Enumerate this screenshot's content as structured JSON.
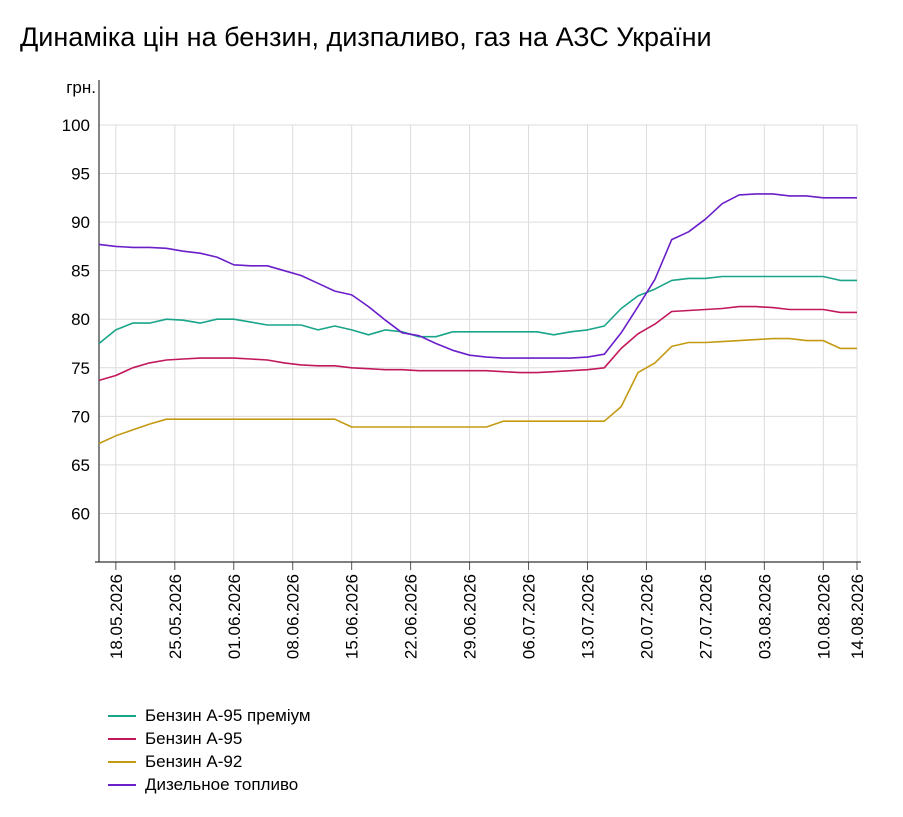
{
  "title": "Динаміка цін на бензин, дизпаливо, газ на АЗС України",
  "chart_data": {
    "type": "line",
    "title": "Динаміка цін на бензин, дизпаливо, газ на АЗС України",
    "ylabel": "грн.",
    "xlabel": "",
    "ylim": [
      55,
      100
    ],
    "yticks": [
      60,
      65,
      70,
      75,
      80,
      85,
      90,
      95,
      100
    ],
    "grid": true,
    "legend_position": "bottom-left",
    "x_range": [
      "2026-05-16",
      "2026-08-14"
    ],
    "x_tick_labels": [
      "18.05.2026",
      "25.05.2026",
      "01.06.2026",
      "08.06.2026",
      "15.06.2026",
      "22.06.2026",
      "29.06.2026",
      "06.07.2026",
      "13.07.2026",
      "20.07.2026",
      "27.07.2026",
      "03.08.2026",
      "10.08.2026",
      "14.08.2026"
    ],
    "x": [
      "2026-05-16",
      "2026-05-18",
      "2026-05-20",
      "2026-05-22",
      "2026-05-24",
      "2026-05-26",
      "2026-05-28",
      "2026-05-30",
      "2026-06-01",
      "2026-06-03",
      "2026-06-05",
      "2026-06-07",
      "2026-06-09",
      "2026-06-11",
      "2026-06-13",
      "2026-06-15",
      "2026-06-17",
      "2026-06-19",
      "2026-06-21",
      "2026-06-23",
      "2026-06-25",
      "2026-06-27",
      "2026-06-29",
      "2026-07-01",
      "2026-07-03",
      "2026-07-05",
      "2026-07-07",
      "2026-07-09",
      "2026-07-11",
      "2026-07-13",
      "2026-07-15",
      "2026-07-17",
      "2026-07-19",
      "2026-07-21",
      "2026-07-23",
      "2026-07-25",
      "2026-07-27",
      "2026-07-29",
      "2026-07-31",
      "2026-08-02",
      "2026-08-04",
      "2026-08-06",
      "2026-08-08",
      "2026-08-10",
      "2026-08-12",
      "2026-08-14"
    ],
    "series": [
      {
        "name": "Бензин А-95 преміум",
        "color": "#1aa58a",
        "values": [
          77.5,
          78.9,
          79.6,
          79.6,
          80.0,
          79.9,
          79.6,
          80.0,
          80.0,
          79.7,
          79.4,
          79.4,
          79.4,
          78.9,
          79.3,
          78.9,
          78.4,
          78.9,
          78.7,
          78.2,
          78.2,
          78.7,
          78.7,
          78.7,
          78.7,
          78.7,
          78.7,
          78.4,
          78.7,
          78.9,
          79.3,
          81.1,
          82.4,
          83.1,
          84.0,
          84.2,
          84.2,
          84.4,
          84.4,
          84.4,
          84.4,
          84.4,
          84.4,
          84.4,
          84.0,
          84.0
        ]
      },
      {
        "name": "Бензин А-95",
        "color": "#c2185b",
        "values": [
          73.7,
          74.2,
          75.0,
          75.5,
          75.8,
          75.9,
          76.0,
          76.0,
          76.0,
          75.9,
          75.8,
          75.5,
          75.3,
          75.2,
          75.2,
          75.0,
          74.9,
          74.8,
          74.8,
          74.7,
          74.7,
          74.7,
          74.7,
          74.7,
          74.6,
          74.5,
          74.5,
          74.6,
          74.7,
          74.8,
          75.0,
          77.0,
          78.5,
          79.5,
          80.8,
          80.9,
          81.0,
          81.1,
          81.3,
          81.3,
          81.2,
          81.0,
          81.0,
          81.0,
          80.7,
          80.7
        ]
      },
      {
        "name": "Бензин А-92",
        "color": "#c49a12",
        "values": [
          67.2,
          68.0,
          68.6,
          69.2,
          69.7,
          69.7,
          69.7,
          69.7,
          69.7,
          69.7,
          69.7,
          69.7,
          69.7,
          69.7,
          69.7,
          68.9,
          68.9,
          68.9,
          68.9,
          68.9,
          68.9,
          68.9,
          68.9,
          68.9,
          69.5,
          69.5,
          69.5,
          69.5,
          69.5,
          69.5,
          69.5,
          71.0,
          74.5,
          75.5,
          77.2,
          77.6,
          77.6,
          77.7,
          77.8,
          77.9,
          78.0,
          78.0,
          77.8,
          77.8,
          77.0,
          77.0
        ]
      },
      {
        "name": "Дизельное топливо",
        "color": "#6a1fc9",
        "values": [
          87.7,
          87.5,
          87.4,
          87.4,
          87.3,
          87.0,
          86.8,
          86.4,
          85.6,
          85.5,
          85.5,
          85.0,
          84.5,
          83.7,
          82.9,
          82.5,
          81.3,
          79.9,
          78.6,
          78.3,
          77.5,
          76.8,
          76.3,
          76.1,
          76.0,
          76.0,
          76.0,
          76.0,
          76.0,
          76.1,
          76.4,
          78.6,
          81.3,
          84.1,
          88.2,
          89.0,
          90.3,
          91.9,
          92.8,
          92.9,
          92.9,
          92.7,
          92.7,
          92.5,
          92.5,
          92.5
        ]
      }
    ]
  }
}
